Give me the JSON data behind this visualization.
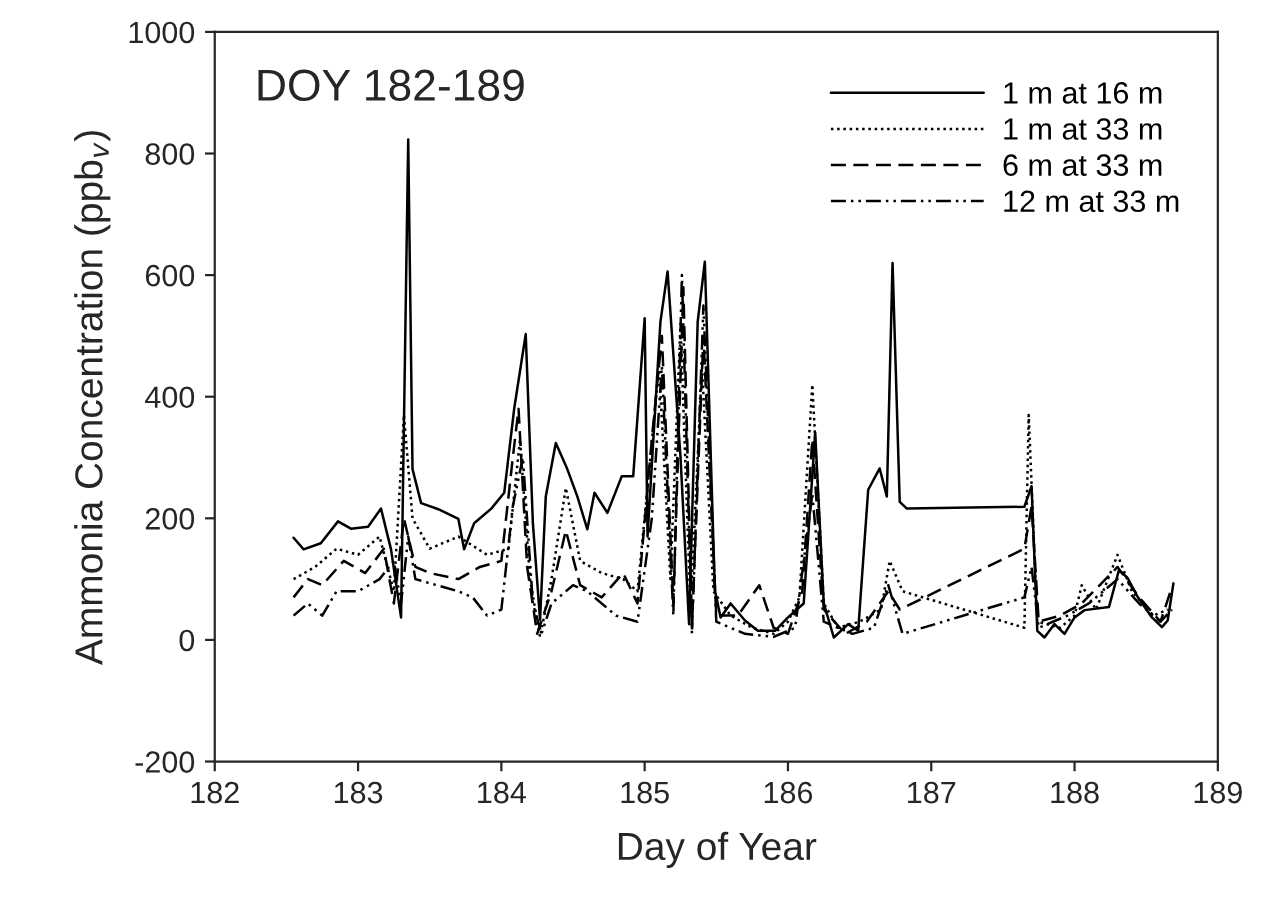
{
  "chart_data": {
    "type": "line",
    "xlabel": "Day of Year",
    "ylabel": "Ammonia Concentration (ppb$_{v}$)",
    "annotations": [
      "DOY 182-189"
    ],
    "xlim": [
      182,
      189
    ],
    "xticks": [
      182,
      183,
      184,
      185,
      186,
      187,
      188,
      189
    ],
    "ylim": [
      -200,
      1000
    ],
    "yticks": [
      -200,
      0,
      200,
      400,
      600,
      800,
      1000
    ],
    "grid": false,
    "legend": "top right",
    "marker": "none",
    "series": [
      {
        "name": "1 m at 16 m",
        "color": "#000000",
        "line_style": "solid",
        "x": [
          182.55,
          182.62,
          182.74,
          182.86,
          182.95,
          183.07,
          183.16,
          183.23,
          183.3,
          183.35,
          183.38,
          183.44,
          183.56,
          183.7,
          183.74,
          183.81,
          183.93,
          184.02,
          184.09,
          184.17,
          184.22,
          184.27,
          184.31,
          184.38,
          184.46,
          184.53,
          184.6,
          184.65,
          184.74,
          184.84,
          184.92,
          185.0,
          185.02,
          185.11,
          185.16,
          185.25,
          185.31,
          185.37,
          185.42,
          185.49,
          185.53,
          185.6,
          185.7,
          185.79,
          185.91,
          186.0,
          186.11,
          186.19,
          186.25,
          186.32,
          186.42,
          186.49,
          186.56,
          186.64,
          186.69,
          186.73,
          186.78,
          186.83,
          187.65,
          187.7,
          187.74,
          187.79,
          187.86,
          187.93,
          188.0,
          188.07,
          188.24,
          188.31,
          188.37,
          188.44,
          188.54,
          188.61,
          188.65,
          188.69
        ],
        "values": [
          168,
          149,
          159,
          195,
          183,
          186,
          216,
          149,
          37,
          823,
          281,
          225,
          215,
          199,
          149,
          192,
          216,
          242,
          381,
          503,
          192,
          33,
          236,
          324,
          281,
          236,
          182,
          242,
          209,
          269,
          269,
          529,
          170,
          523,
          606,
          302,
          26,
          523,
          622,
          82,
          37,
          60,
          32,
          15,
          15,
          37,
          60,
          341,
          60,
          4,
          26,
          15,
          247,
          282,
          236,
          620,
          227,
          216,
          219,
          253,
          15,
          4,
          26,
          10,
          37,
          49,
          54,
          115,
          102,
          71,
          37,
          21,
          32,
          93
        ]
      },
      {
        "name": "1 m at 33 m",
        "color": "#000000",
        "line_style": "dotted",
        "x": [
          182.55,
          182.7,
          182.85,
          183.0,
          183.15,
          183.25,
          183.32,
          183.38,
          183.5,
          183.7,
          183.9,
          184.05,
          184.13,
          184.2,
          184.27,
          184.35,
          184.45,
          184.55,
          184.7,
          184.85,
          184.95,
          185.02,
          185.1,
          185.18,
          185.25,
          185.32,
          185.4,
          185.48,
          185.6,
          185.75,
          185.9,
          186.0,
          186.08,
          186.17,
          186.25,
          186.35,
          186.5,
          186.65,
          186.71,
          186.8,
          187.65,
          187.68,
          187.74,
          187.9,
          188.0,
          188.05,
          188.15,
          188.3,
          188.4,
          188.55,
          188.65
        ],
        "values": [
          100,
          120,
          150,
          140,
          170,
          80,
          370,
          200,
          150,
          170,
          140,
          150,
          330,
          100,
          5,
          100,
          250,
          130,
          110,
          100,
          80,
          250,
          450,
          100,
          520,
          50,
          450,
          80,
          40,
          20,
          10,
          30,
          70,
          420,
          60,
          20,
          30,
          50,
          130,
          80,
          20,
          370,
          30,
          20,
          40,
          90,
          50,
          140,
          80,
          40,
          50
        ]
      },
      {
        "name": "6 m at 33 m",
        "color": "#000000",
        "line_style": "dashed",
        "x": [
          182.55,
          182.65,
          182.75,
          182.9,
          183.05,
          183.18,
          183.25,
          183.32,
          183.4,
          183.5,
          183.7,
          183.85,
          184.0,
          184.08,
          184.12,
          184.18,
          184.25,
          184.35,
          184.45,
          184.55,
          184.7,
          184.85,
          184.95,
          185.05,
          185.12,
          185.2,
          185.27,
          185.33,
          185.41,
          185.5,
          185.65,
          185.8,
          185.9,
          186.0,
          186.1,
          186.17,
          186.25,
          186.4,
          186.55,
          186.7,
          186.78,
          187.65,
          187.7,
          187.75,
          187.9,
          188.05,
          188.3,
          188.45,
          188.6,
          188.67
        ],
        "values": [
          70,
          100,
          90,
          130,
          110,
          150,
          60,
          200,
          120,
          110,
          100,
          120,
          130,
          300,
          380,
          120,
          10,
          80,
          180,
          90,
          70,
          110,
          60,
          330,
          500,
          60,
          580,
          20,
          500,
          40,
          40,
          90,
          20,
          10,
          80,
          330,
          50,
          10,
          30,
          80,
          50,
          150,
          220,
          30,
          40,
          60,
          120,
          70,
          30,
          80
        ]
      },
      {
        "name": "12 m at 33 m",
        "color": "#000000",
        "line_style": "dashdot",
        "x": [
          182.55,
          182.65,
          182.75,
          182.85,
          183.0,
          183.15,
          183.25,
          183.3,
          183.35,
          183.4,
          183.55,
          183.7,
          183.8,
          183.9,
          184.0,
          184.08,
          184.15,
          184.22,
          184.28,
          184.35,
          184.5,
          184.6,
          184.8,
          184.95,
          185.05,
          185.12,
          185.2,
          185.26,
          185.33,
          185.41,
          185.5,
          185.7,
          185.9,
          186.05,
          186.17,
          186.25,
          186.45,
          186.6,
          186.7,
          186.8,
          187.65,
          187.7,
          187.75,
          187.95,
          188.1,
          188.3,
          188.45,
          188.6,
          188.68
        ],
        "values": [
          40,
          60,
          40,
          80,
          80,
          100,
          130,
          60,
          170,
          100,
          90,
          80,
          70,
          40,
          50,
          220,
          300,
          60,
          10,
          60,
          90,
          80,
          40,
          30,
          200,
          450,
          40,
          600,
          10,
          550,
          30,
          10,
          5,
          20,
          240,
          30,
          10,
          20,
          90,
          10,
          70,
          120,
          20,
          40,
          60,
          100,
          60,
          30,
          50
        ]
      }
    ]
  }
}
